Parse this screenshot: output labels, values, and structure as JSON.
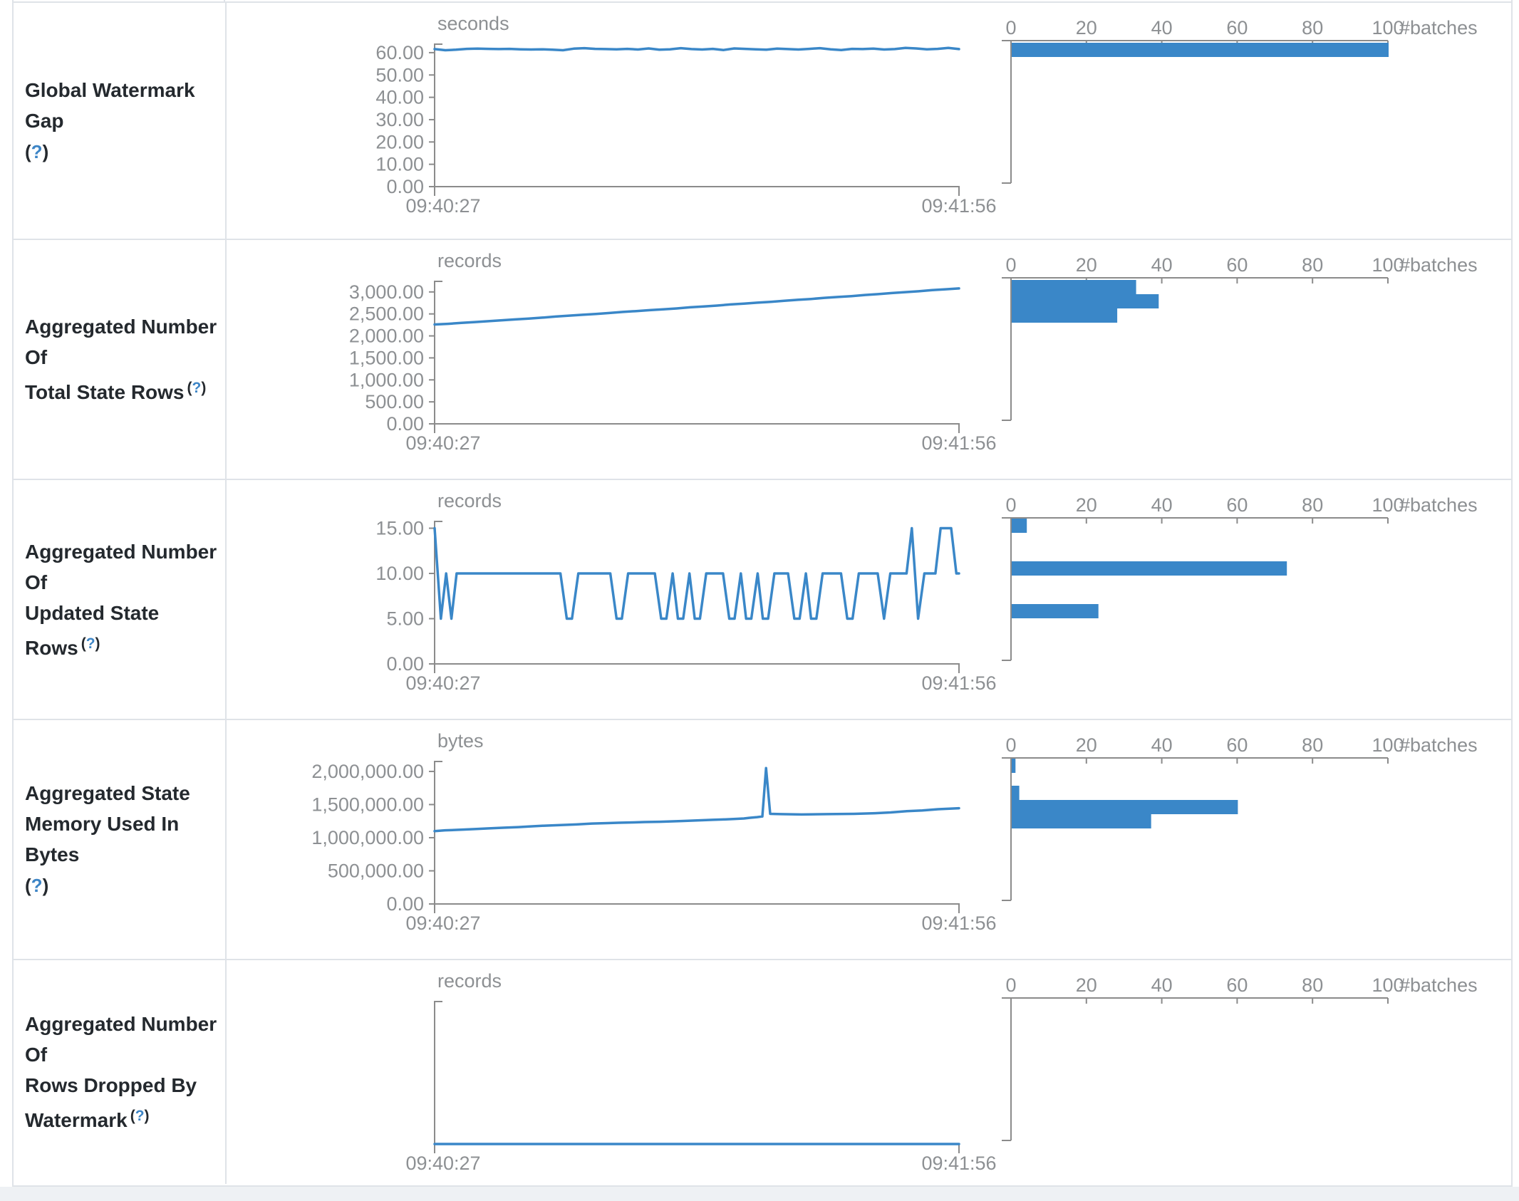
{
  "theme": {
    "accent": "#3a87c8",
    "axis_line": "#8b8b8b",
    "axis_text": "#8d9093",
    "label_text": "#24292e",
    "help_link": "#3d85c6",
    "border": "#dfe3e8",
    "page_bg": "#eef1f4"
  },
  "ui": {
    "help_open": "(",
    "help_mark": "?",
    "help_close": ")"
  },
  "chart_data": [
    {
      "name": "Global Watermark Gap",
      "label_lines": [
        "Global Watermark Gap"
      ],
      "timeline": {
        "type": "line",
        "unit": "seconds",
        "x_start": "09:40:27",
        "x_end": "09:41:56",
        "ymax": 63.8,
        "yticks": [
          {
            "v": 60,
            "label": "60.00"
          },
          {
            "v": 50,
            "label": "50.00"
          },
          {
            "v": 40,
            "label": "40.00"
          },
          {
            "v": 30,
            "label": "30.00"
          },
          {
            "v": 20,
            "label": "20.00"
          },
          {
            "v": 10,
            "label": "10.00"
          },
          {
            "v": 0,
            "label": "0.00"
          }
        ],
        "values": [
          61.6,
          61.1,
          61.3,
          61.7,
          61.8,
          61.7,
          61.6,
          61.7,
          61.5,
          61.4,
          61.5,
          61.3,
          61.1,
          61.8,
          62.0,
          61.7,
          61.6,
          61.5,
          61.7,
          61.4,
          61.9,
          61.3,
          61.5,
          62.0,
          61.6,
          61.4,
          61.7,
          61.2,
          61.9,
          61.7,
          61.5,
          61.3,
          61.8,
          61.6,
          61.4,
          61.7,
          62.0,
          61.5,
          61.2,
          61.7,
          61.6,
          61.8,
          61.4,
          61.6,
          62.1,
          61.9,
          61.5,
          61.7,
          62.1,
          61.6
        ]
      },
      "histogram": {
        "type": "bar",
        "xlabel": "#batches",
        "xticks": [
          0,
          20,
          40,
          60,
          80,
          100
        ],
        "xmax": 100,
        "bars": [
          {
            "count": 100,
            "offset": 56
          }
        ]
      }
    },
    {
      "name": "Aggregated Number Of Total State Rows",
      "label_lines": [
        "Aggregated Number Of",
        "Total State Rows"
      ],
      "timeline": {
        "type": "line",
        "unit": "records",
        "x_start": "09:40:27",
        "x_end": "09:41:56",
        "ymax": 3240,
        "yticks": [
          {
            "v": 3000,
            "label": "3,000.00"
          },
          {
            "v": 2500,
            "label": "2,500.00"
          },
          {
            "v": 2000,
            "label": "2,000.00"
          },
          {
            "v": 1500,
            "label": "1,500.00"
          },
          {
            "v": 1000,
            "label": "1,000.00"
          },
          {
            "v": 500,
            "label": "500.00"
          },
          {
            "v": 0,
            "label": "0.00"
          }
        ],
        "values": [
          2260,
          2275,
          2295,
          2315,
          2335,
          2355,
          2375,
          2395,
          2415,
          2440,
          2460,
          2480,
          2500,
          2520,
          2545,
          2565,
          2585,
          2605,
          2625,
          2650,
          2670,
          2690,
          2715,
          2735,
          2755,
          2775,
          2800,
          2820,
          2840,
          2865,
          2885,
          2905,
          2930,
          2950,
          2975,
          2995,
          3015,
          3040,
          3060,
          3080
        ]
      },
      "histogram": {
        "type": "bar",
        "xlabel": "#batches",
        "xticks": [
          0,
          20,
          40,
          60,
          80,
          100
        ],
        "xmax": 100,
        "bars": [
          {
            "count": 33,
            "offset": 56
          },
          {
            "count": 39,
            "offset": 76
          },
          {
            "count": 28,
            "offset": 96
          }
        ]
      }
    },
    {
      "name": "Aggregated Number Of Updated State Rows",
      "label_lines": [
        "Aggregated Number Of",
        "Updated State Rows"
      ],
      "timeline": {
        "type": "line",
        "unit": "records",
        "x_start": "09:40:27",
        "x_end": "09:41:56",
        "ymax": 15.75,
        "yticks": [
          {
            "v": 15,
            "label": "15.00"
          },
          {
            "v": 10,
            "label": "10.00"
          },
          {
            "v": 5,
            "label": "5.00"
          },
          {
            "v": 0,
            "label": "0.00"
          }
        ],
        "points": [
          [
            0,
            15
          ],
          [
            0.012,
            5
          ],
          [
            0.022,
            10
          ],
          [
            0.032,
            5
          ],
          [
            0.042,
            10
          ],
          [
            0.24,
            10
          ],
          [
            0.252,
            5
          ],
          [
            0.262,
            5
          ],
          [
            0.274,
            10
          ],
          [
            0.335,
            10
          ],
          [
            0.347,
            5
          ],
          [
            0.357,
            5
          ],
          [
            0.369,
            10
          ],
          [
            0.42,
            10
          ],
          [
            0.432,
            5
          ],
          [
            0.442,
            5
          ],
          [
            0.454,
            10
          ],
          [
            0.464,
            5
          ],
          [
            0.474,
            5
          ],
          [
            0.486,
            10
          ],
          [
            0.496,
            5
          ],
          [
            0.506,
            5
          ],
          [
            0.518,
            10
          ],
          [
            0.55,
            10
          ],
          [
            0.562,
            5
          ],
          [
            0.572,
            5
          ],
          [
            0.584,
            10
          ],
          [
            0.594,
            5
          ],
          [
            0.604,
            5
          ],
          [
            0.616,
            10
          ],
          [
            0.626,
            5
          ],
          [
            0.636,
            5
          ],
          [
            0.648,
            10
          ],
          [
            0.674,
            10
          ],
          [
            0.686,
            5
          ],
          [
            0.696,
            5
          ],
          [
            0.708,
            10
          ],
          [
            0.718,
            5
          ],
          [
            0.728,
            5
          ],
          [
            0.74,
            10
          ],
          [
            0.775,
            10
          ],
          [
            0.787,
            5
          ],
          [
            0.797,
            5
          ],
          [
            0.809,
            10
          ],
          [
            0.845,
            10
          ],
          [
            0.857,
            5
          ],
          [
            0.869,
            10
          ],
          [
            0.9,
            10
          ],
          [
            0.91,
            15
          ],
          [
            0.922,
            5
          ],
          [
            0.934,
            10
          ],
          [
            0.955,
            10
          ],
          [
            0.965,
            15
          ],
          [
            0.985,
            15
          ],
          [
            0.995,
            10
          ],
          [
            1,
            10
          ]
        ]
      },
      "histogram": {
        "type": "bar",
        "xlabel": "#batches",
        "xticks": [
          0,
          20,
          40,
          60,
          80,
          100
        ],
        "xmax": 100,
        "bars": [
          {
            "count": 4,
            "offset": 54
          },
          {
            "count": 73,
            "offset": 114
          },
          {
            "count": 23,
            "offset": 174
          }
        ]
      }
    },
    {
      "name": "Aggregated State Memory Used In Bytes",
      "label_lines": [
        "Aggregated State",
        "Memory Used In Bytes"
      ],
      "timeline": {
        "type": "line",
        "unit": "bytes",
        "x_start": "09:40:27",
        "x_end": "09:41:56",
        "ymax": 2150000,
        "yticks": [
          {
            "v": 2000000,
            "label": "2,000,000.00"
          },
          {
            "v": 1500000,
            "label": "1,500,000.00"
          },
          {
            "v": 1000000,
            "label": "1,000,000.00"
          },
          {
            "v": 500000,
            "label": "500,000.00"
          },
          {
            "v": 0,
            "label": "0.00"
          }
        ],
        "points": [
          [
            0,
            1100000
          ],
          [
            0.02,
            1112000
          ],
          [
            0.05,
            1120000
          ],
          [
            0.08,
            1131000
          ],
          [
            0.1,
            1140000
          ],
          [
            0.13,
            1150000
          ],
          [
            0.16,
            1160000
          ],
          [
            0.18,
            1170000
          ],
          [
            0.21,
            1181000
          ],
          [
            0.24,
            1190000
          ],
          [
            0.27,
            1200000
          ],
          [
            0.3,
            1214000
          ],
          [
            0.33,
            1220000
          ],
          [
            0.35,
            1226000
          ],
          [
            0.38,
            1231000
          ],
          [
            0.4,
            1236000
          ],
          [
            0.43,
            1241000
          ],
          [
            0.45,
            1246000
          ],
          [
            0.47,
            1251000
          ],
          [
            0.5,
            1260000
          ],
          [
            0.53,
            1270000
          ],
          [
            0.55,
            1275000
          ],
          [
            0.57,
            1281000
          ],
          [
            0.59,
            1290000
          ],
          [
            0.6,
            1300000
          ],
          [
            0.615,
            1310000
          ],
          [
            0.625,
            1320000
          ],
          [
            0.632,
            2050000
          ],
          [
            0.64,
            1360000
          ],
          [
            0.66,
            1356000
          ],
          [
            0.7,
            1350000
          ],
          [
            0.75,
            1356000
          ],
          [
            0.8,
            1360000
          ],
          [
            0.84,
            1370000
          ],
          [
            0.87,
            1381000
          ],
          [
            0.9,
            1400000
          ],
          [
            0.93,
            1410000
          ],
          [
            0.96,
            1430000
          ],
          [
            1,
            1445000
          ]
        ]
      },
      "histogram": {
        "type": "bar",
        "xlabel": "#batches",
        "xticks": [
          0,
          20,
          40,
          60,
          80,
          100
        ],
        "xmax": 100,
        "bars": [
          {
            "count": 1,
            "offset": 54
          },
          {
            "count": 2,
            "offset": 92
          },
          {
            "count": 60,
            "offset": 112
          },
          {
            "count": 37,
            "offset": 132
          }
        ]
      }
    },
    {
      "name": "Aggregated Number Of Rows Dropped By Watermark",
      "label_lines": [
        "Aggregated Number Of",
        "Rows Dropped By",
        "Watermark"
      ],
      "timeline": {
        "type": "line",
        "unit": "records",
        "x_start": "09:40:27",
        "x_end": "09:41:56",
        "ymax": 1,
        "yticks": [],
        "values": [
          0,
          0
        ]
      },
      "histogram": {
        "type": "bar",
        "xlabel": "#batches",
        "xticks": [
          0,
          20,
          40,
          60,
          80,
          100
        ],
        "xmax": 100,
        "bars": []
      }
    }
  ]
}
